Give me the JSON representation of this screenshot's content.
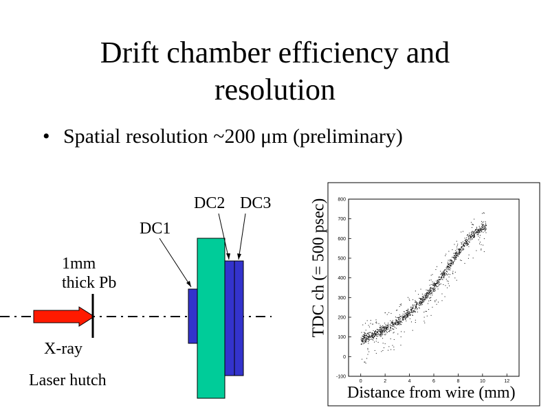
{
  "slide": {
    "title_line1": "Drift chamber efficiency and",
    "title_line2": "resolution",
    "bullet_marker": "•",
    "bullet_text": "Spatial resolution ~200 μm (preliminary)"
  },
  "diagram": {
    "pb_line1": "1mm",
    "pb_line2": "thick Pb",
    "dc1": "DC1",
    "dc2": "DC2",
    "dc3": "DC3",
    "xray": "X-ray",
    "hutch": "Laser hutch",
    "colors": {
      "arrow": "#ff1a00",
      "chamber_big": "#00cc99",
      "chamber_small": "#3333cc"
    }
  },
  "chart_data": {
    "type": "scatter",
    "xlabel": "Distance from wire (mm)",
    "ylabel": "TDC ch (= 500 psec)",
    "xlim": [
      -1,
      13
    ],
    "ylim": [
      -100,
      800
    ],
    "x_ticks": [
      0,
      2,
      4,
      6,
      8,
      10,
      12
    ],
    "y_ticks": [
      -100,
      0,
      100,
      200,
      300,
      400,
      500,
      600,
      700,
      800
    ],
    "grid": false,
    "trend_points": [
      {
        "x": 0,
        "y": 90
      },
      {
        "x": 1,
        "y": 110
      },
      {
        "x": 2,
        "y": 140
      },
      {
        "x": 3,
        "y": 175
      },
      {
        "x": 4,
        "y": 225
      },
      {
        "x": 5,
        "y": 285
      },
      {
        "x": 6,
        "y": 355
      },
      {
        "x": 7,
        "y": 440
      },
      {
        "x": 8,
        "y": 535
      },
      {
        "x": 9,
        "y": 610
      },
      {
        "x": 10,
        "y": 660
      }
    ]
  }
}
